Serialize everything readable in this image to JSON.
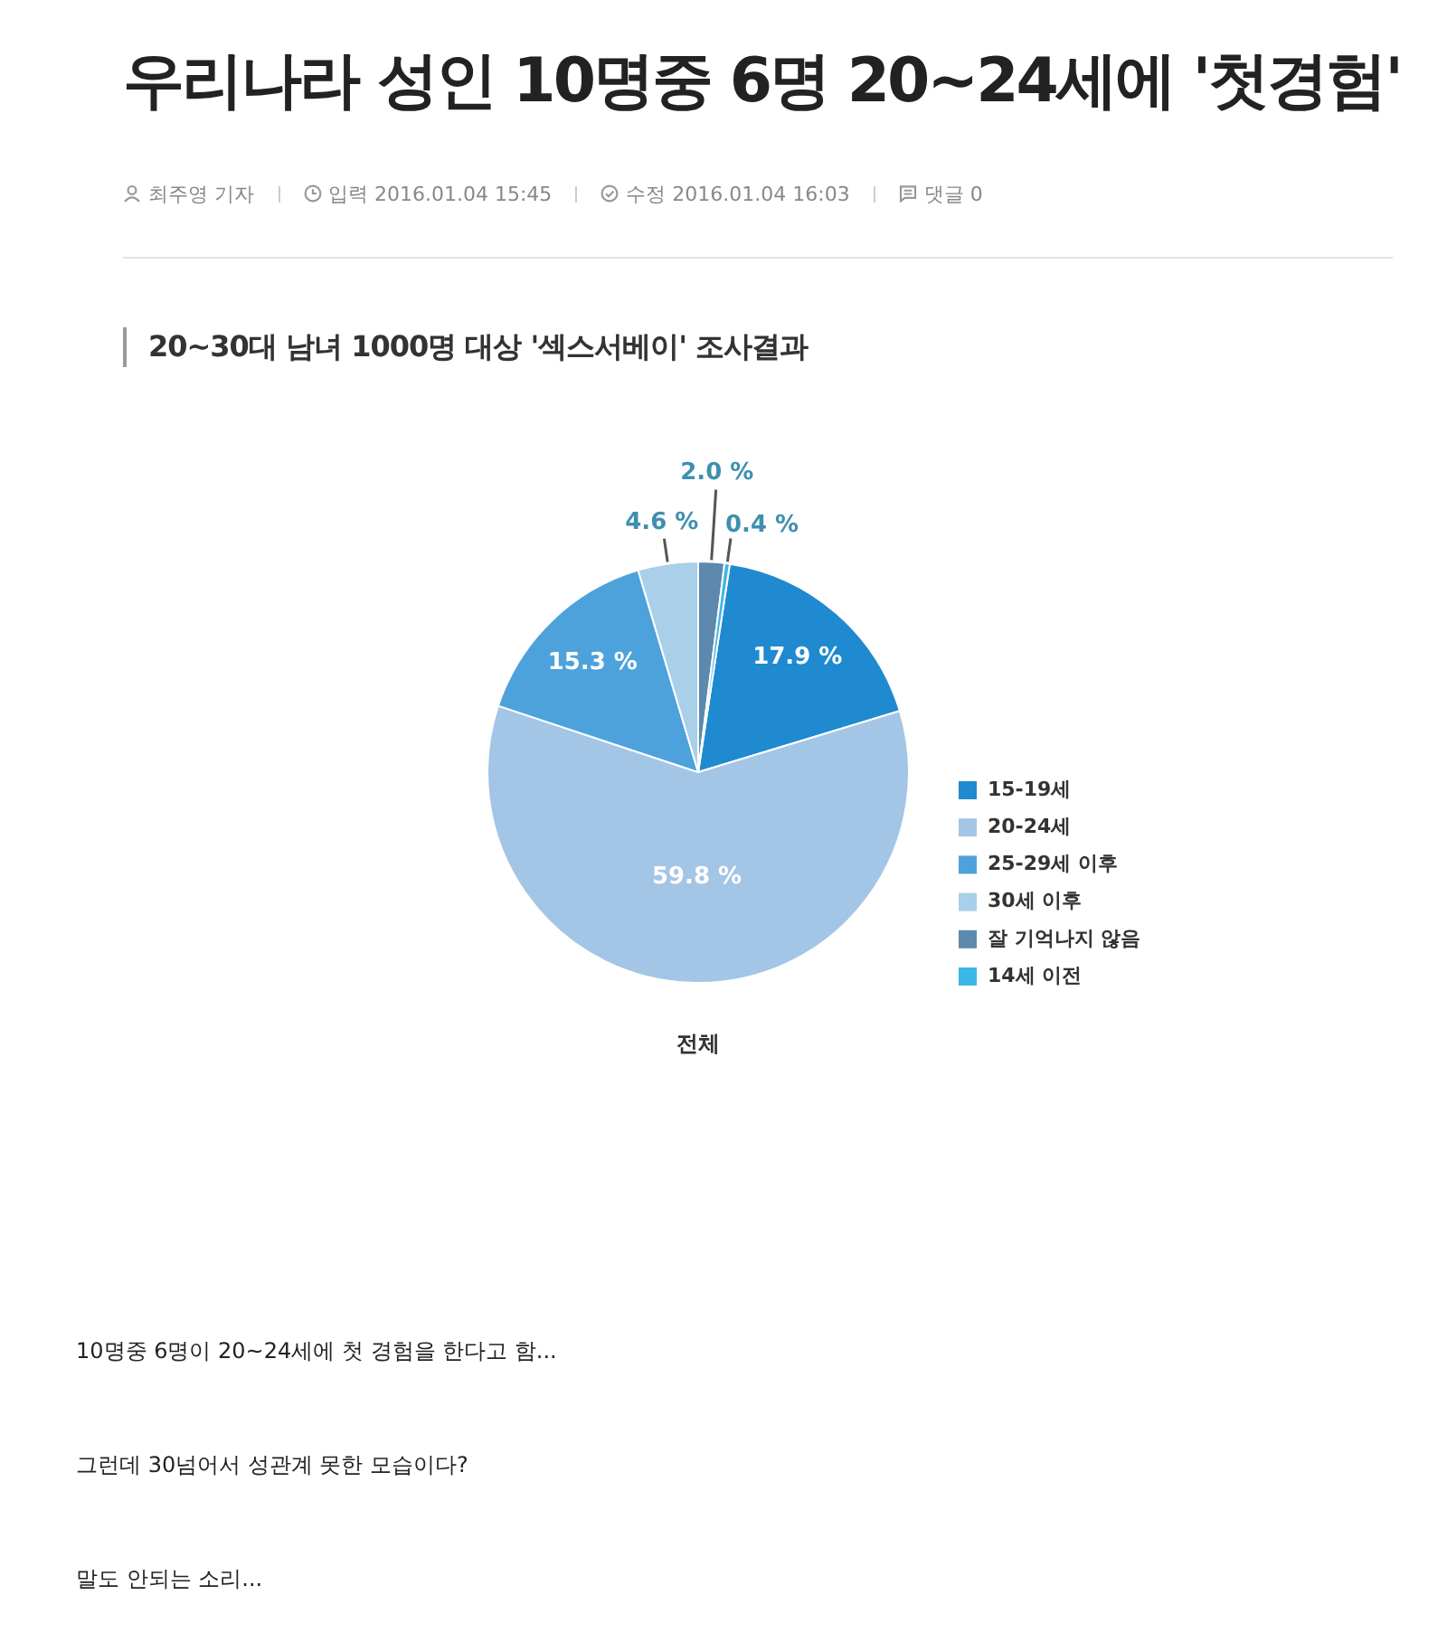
{
  "chart_data": {
    "type": "pie",
    "title": "우리나라 성인 10명중 6명 20~24세에 '첫경험'",
    "subtitle": "20~30대 남녀 1000명 대상 '섹스서베이' 조사결과",
    "categories": [
      "15-19세",
      "20-24세",
      "25-29세 이후",
      "30세 이후",
      "잘 기억나지 않음",
      "14세 이전"
    ],
    "values": [
      17.9,
      59.8,
      15.3,
      4.6,
      2.0,
      0.4
    ],
    "colors": [
      "#1f8ad0",
      "#a3c5e6",
      "#4ea2dc",
      "#a9cfe9",
      "#5c89ad",
      "#3ab7e6"
    ],
    "value_labels": [
      "17.9 %",
      "59.8 %",
      "15.3 %",
      "4.6 %",
      "2.0 %",
      "0.4 %"
    ],
    "legend": "right",
    "annotations": [
      "최주영 기자",
      "입력 2016.01.04 15:45",
      "수정 2016.01.04 16:03",
      "댓글 0",
      "전체",
      "10명중 6명이 20~24세에 첫 경험을 한다고 함...",
      "그런데 30넘어서 성관계 못한 모습이다?",
      "말도 안되는 소리..."
    ]
  }
}
